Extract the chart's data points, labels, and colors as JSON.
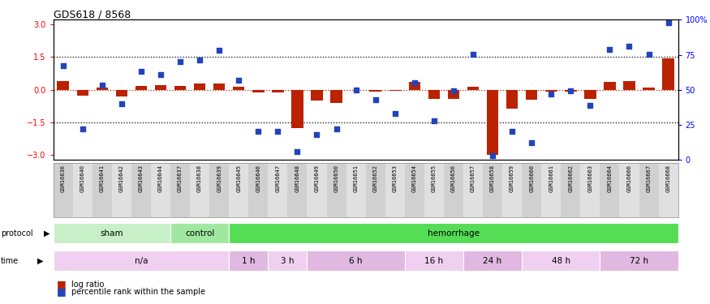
{
  "title": "GDS618 / 8568",
  "samples": [
    "GSM16636",
    "GSM16640",
    "GSM16641",
    "GSM16642",
    "GSM16643",
    "GSM16644",
    "GSM16637",
    "GSM16638",
    "GSM16639",
    "GSM16645",
    "GSM16646",
    "GSM16647",
    "GSM16648",
    "GSM16649",
    "GSM16650",
    "GSM16651",
    "GSM16652",
    "GSM16653",
    "GSM16654",
    "GSM16655",
    "GSM16656",
    "GSM16657",
    "GSM16658",
    "GSM16659",
    "GSM16660",
    "GSM16661",
    "GSM16662",
    "GSM16663",
    "GSM16664",
    "GSM16666",
    "GSM16667",
    "GSM16668"
  ],
  "log_ratio": [
    0.38,
    -0.28,
    0.1,
    -0.32,
    0.18,
    0.22,
    0.17,
    0.27,
    0.28,
    0.12,
    -0.12,
    -0.12,
    -1.75,
    -0.5,
    -0.62,
    0.0,
    -0.08,
    -0.05,
    0.35,
    -0.42,
    -0.42,
    0.15,
    -3.0,
    -0.85,
    -0.45,
    -0.1,
    -0.1,
    -0.42,
    0.35,
    0.38,
    0.1,
    1.45
  ],
  "percentile": [
    67,
    22,
    53,
    40,
    63,
    61,
    70,
    71,
    78,
    57,
    20,
    20,
    6,
    18,
    22,
    50,
    43,
    33,
    55,
    28,
    49,
    75,
    3,
    20,
    12,
    47,
    49,
    39,
    79,
    81,
    75,
    98
  ],
  "protocol_groups": [
    {
      "label": "sham",
      "start": 0,
      "end": 6,
      "color": "#c8f0c8"
    },
    {
      "label": "control",
      "start": 6,
      "end": 9,
      "color": "#a0e8a0"
    },
    {
      "label": "hemorrhage",
      "start": 9,
      "end": 32,
      "color": "#55dd55"
    }
  ],
  "time_groups": [
    {
      "label": "n/a",
      "start": 0,
      "end": 9,
      "color": "#f0d0f0"
    },
    {
      "label": "1 h",
      "start": 9,
      "end": 11,
      "color": "#e0b8e0"
    },
    {
      "label": "3 h",
      "start": 11,
      "end": 13,
      "color": "#f0d0f0"
    },
    {
      "label": "6 h",
      "start": 13,
      "end": 18,
      "color": "#e0b8e0"
    },
    {
      "label": "16 h",
      "start": 18,
      "end": 21,
      "color": "#f0d0f0"
    },
    {
      "label": "24 h",
      "start": 21,
      "end": 24,
      "color": "#e0b8e0"
    },
    {
      "label": "48 h",
      "start": 24,
      "end": 28,
      "color": "#f0d0f0"
    },
    {
      "label": "72 h",
      "start": 28,
      "end": 32,
      "color": "#e0b8e0"
    }
  ],
  "ylim": [
    -3.2,
    3.2
  ],
  "bar_color": "#bb2200",
  "dot_color": "#2244bb",
  "background_color": "#ffffff",
  "xtick_bg": "#d8d8d8"
}
